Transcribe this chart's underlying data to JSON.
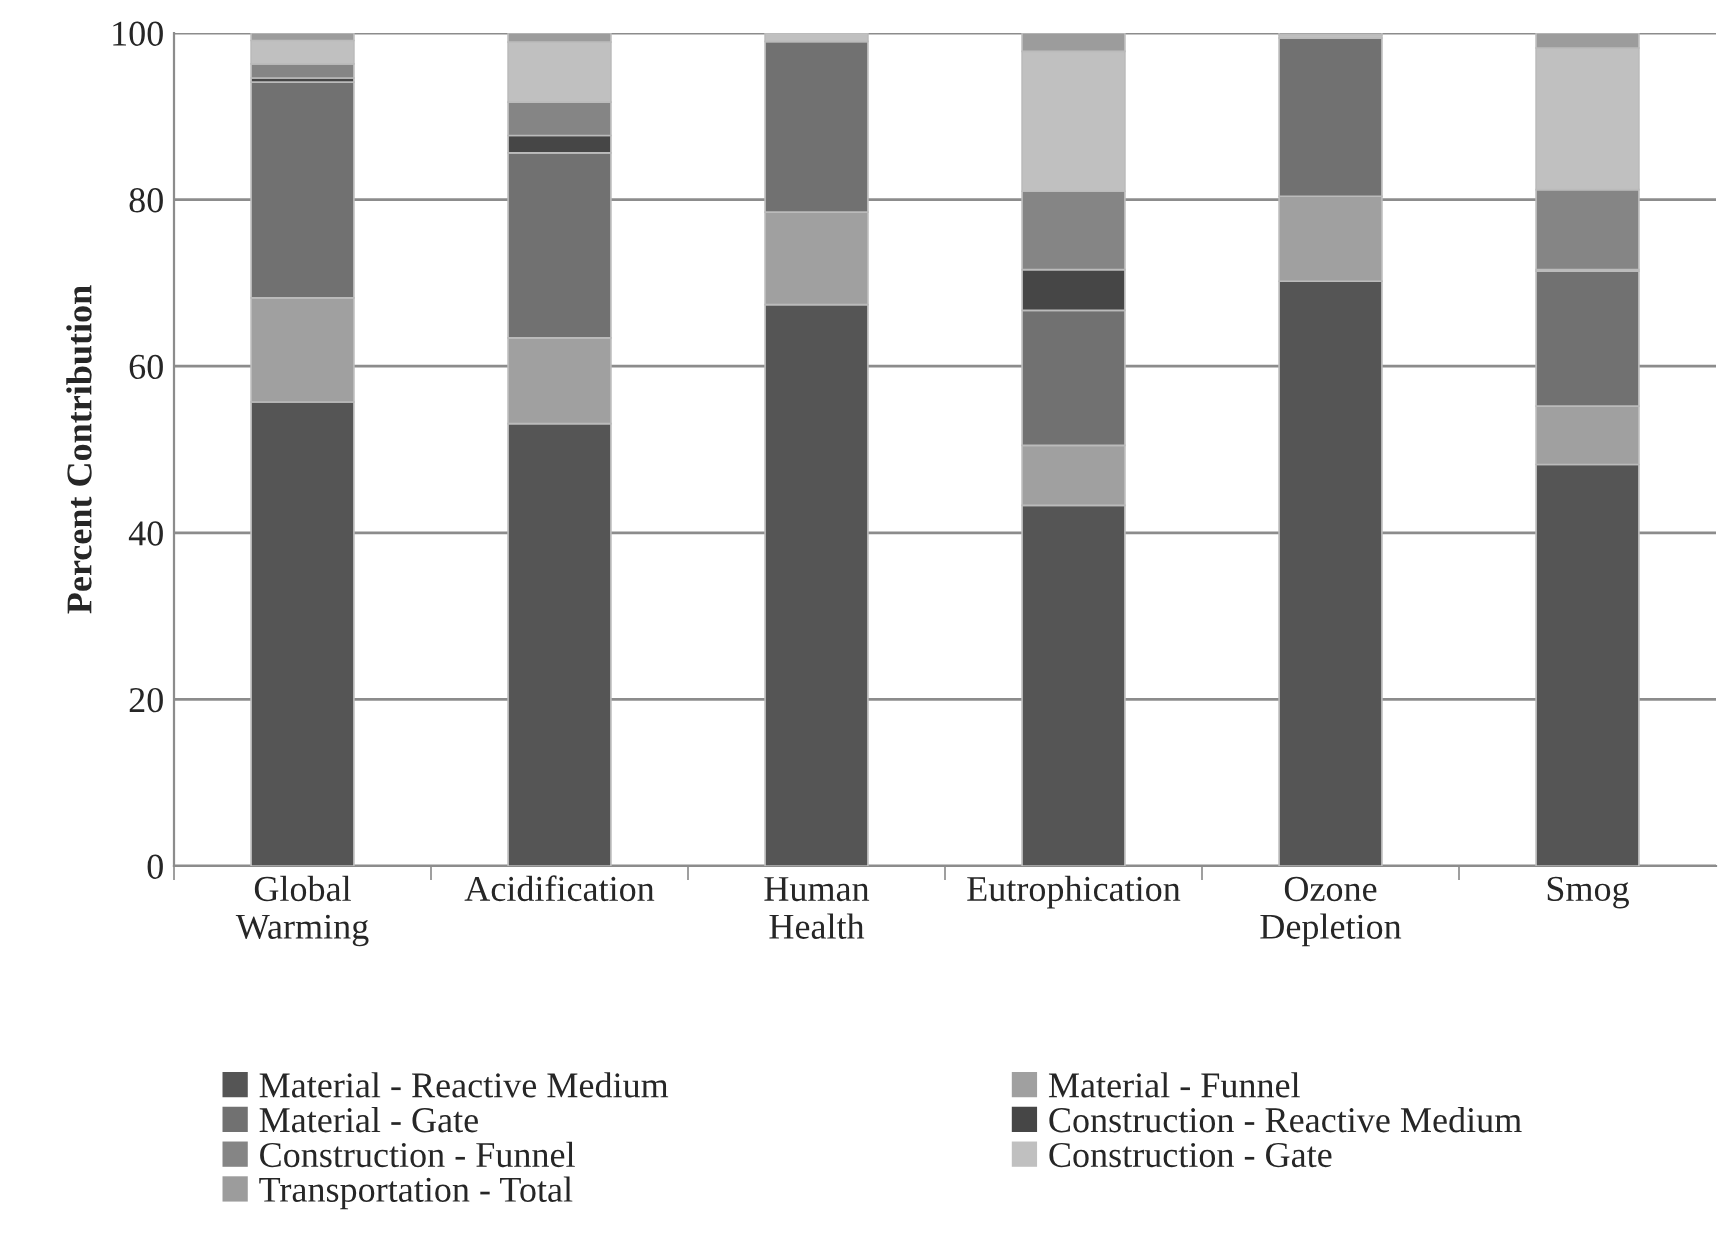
{
  "chart_data": {
    "type": "bar",
    "stacked": true,
    "ylabel": "Percent Contribution",
    "categories": [
      "Global\nWarming",
      "Acidification",
      "Human\nHealth",
      "Eutrophication",
      "Ozone\nDepletion",
      "Smog"
    ],
    "series": [
      {
        "name": "Material - Reactive Medium",
        "color": "#555555",
        "values": [
          55.7,
          53.1,
          67.4,
          43.3,
          70.2,
          48.2
        ]
      },
      {
        "name": "Material - Funnel",
        "color": "#a0a0a0",
        "values": [
          12.5,
          10.3,
          11.1,
          7.2,
          10.2,
          7.0
        ]
      },
      {
        "name": "Material - Gate",
        "color": "#717171",
        "values": [
          25.9,
          22.2,
          20.5,
          16.2,
          19.0,
          16.2
        ]
      },
      {
        "name": "Construction - Reactive Medium",
        "color": "#464646",
        "values": [
          0.5,
          2.1,
          null,
          4.9,
          null,
          0.2
        ]
      },
      {
        "name": "Construction - Funnel",
        "color": "#858585",
        "values": [
          1.7,
          4.0,
          null,
          9.4,
          null,
          9.6
        ]
      },
      {
        "name": "Construction - Gate",
        "color": "#c0c0c0",
        "values": [
          2.8,
          7.2,
          1.0,
          16.8,
          0.4,
          17.0
        ]
      },
      {
        "name": "Transportation - Total",
        "color": "#9c9c9c",
        "values": [
          0.9,
          1.1,
          null,
          2.2,
          0.4,
          1.8
        ]
      }
    ],
    "ylim": [
      0,
      100
    ],
    "yticks": [
      0,
      20,
      40,
      60,
      80,
      100
    ],
    "grid": "y",
    "legend": "bottom"
  }
}
